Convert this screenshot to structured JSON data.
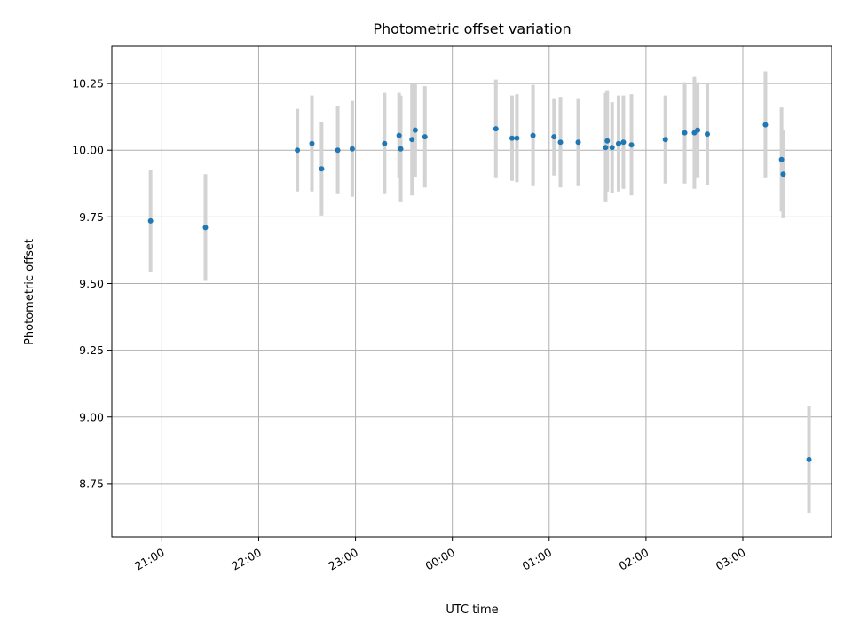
{
  "chart_data": {
    "type": "scatter",
    "title": "Photometric offset variation",
    "xlabel": "UTC time",
    "ylabel": "Photometric offset",
    "x_axis_type": "time",
    "x_range": [
      "20:29",
      "03:55"
    ],
    "ylim": [
      8.55,
      10.39
    ],
    "x_ticks": [
      "21:00",
      "22:00",
      "23:00",
      "00:00",
      "01:00",
      "02:00",
      "03:00"
    ],
    "y_ticks": [
      "8.75",
      "9.00",
      "9.25",
      "9.50",
      "9.75",
      "10.00",
      "10.25"
    ],
    "grid": true,
    "point_color": "#1f77b4",
    "errorbar_color": "#d3d3d3",
    "series": [
      {
        "points": [
          {
            "x": "20:53",
            "y": 9.735,
            "err": 0.19
          },
          {
            "x": "21:27",
            "y": 9.71,
            "err": 0.2
          },
          {
            "x": "22:24",
            "y": 10.0,
            "err": 0.155
          },
          {
            "x": "22:33",
            "y": 10.025,
            "err": 0.18
          },
          {
            "x": "22:39",
            "y": 9.93,
            "err": 0.175
          },
          {
            "x": "22:49",
            "y": 10.0,
            "err": 0.165
          },
          {
            "x": "22:58",
            "y": 10.005,
            "err": 0.18
          },
          {
            "x": "23:18",
            "y": 10.025,
            "err": 0.19
          },
          {
            "x": "23:27",
            "y": 10.055,
            "err": 0.16
          },
          {
            "x": "23:28",
            "y": 10.005,
            "err": 0.2
          },
          {
            "x": "23:35",
            "y": 10.04,
            "err": 0.21
          },
          {
            "x": "23:37",
            "y": 10.075,
            "err": 0.175
          },
          {
            "x": "23:43",
            "y": 10.05,
            "err": 0.19
          },
          {
            "x": "00:27",
            "y": 10.08,
            "err": 0.185
          },
          {
            "x": "00:37",
            "y": 10.045,
            "err": 0.16
          },
          {
            "x": "00:40",
            "y": 10.045,
            "err": 0.165
          },
          {
            "x": "00:50",
            "y": 10.055,
            "err": 0.19
          },
          {
            "x": "01:03",
            "y": 10.05,
            "err": 0.145
          },
          {
            "x": "01:07",
            "y": 10.03,
            "err": 0.17
          },
          {
            "x": "01:18",
            "y": 10.03,
            "err": 0.165
          },
          {
            "x": "01:35",
            "y": 10.01,
            "err": 0.205
          },
          {
            "x": "01:36",
            "y": 10.035,
            "err": 0.19
          },
          {
            "x": "01:39",
            "y": 10.01,
            "err": 0.17
          },
          {
            "x": "01:43",
            "y": 10.025,
            "err": 0.18
          },
          {
            "x": "01:46",
            "y": 10.03,
            "err": 0.175
          },
          {
            "x": "01:51",
            "y": 10.02,
            "err": 0.19
          },
          {
            "x": "02:12",
            "y": 10.04,
            "err": 0.165
          },
          {
            "x": "02:24",
            "y": 10.065,
            "err": 0.19
          },
          {
            "x": "02:30",
            "y": 10.065,
            "err": 0.21
          },
          {
            "x": "02:32",
            "y": 10.075,
            "err": 0.18
          },
          {
            "x": "02:38",
            "y": 10.06,
            "err": 0.19
          },
          {
            "x": "03:14",
            "y": 10.095,
            "err": 0.2
          },
          {
            "x": "03:24",
            "y": 9.965,
            "err": 0.195
          },
          {
            "x": "03:25",
            "y": 9.91,
            "err": 0.165
          },
          {
            "x": "03:41",
            "y": 8.84,
            "err": 0.2
          }
        ]
      }
    ]
  }
}
